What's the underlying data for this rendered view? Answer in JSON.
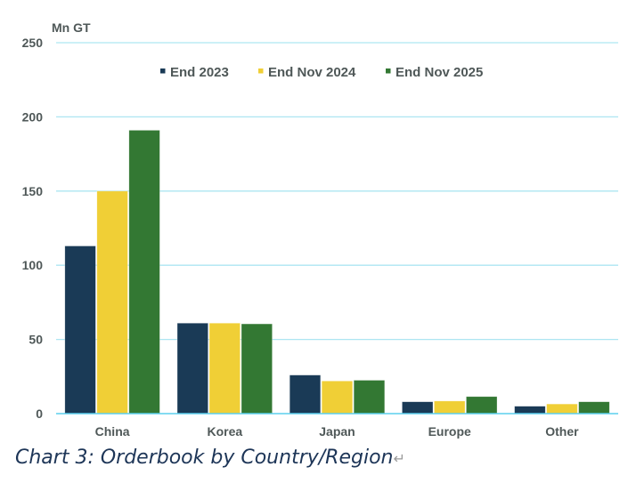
{
  "chart_data": {
    "type": "bar",
    "title": "",
    "unit_label": "Mn GT",
    "xlabel": "",
    "ylabel": "Mn GT",
    "ylim": [
      0,
      250
    ],
    "yticks": [
      0,
      50,
      100,
      150,
      200,
      250
    ],
    "grid": true,
    "legend_position": "top-center",
    "categories": [
      "China",
      "Korea",
      "Japan",
      "Europe",
      "Other"
    ],
    "series": [
      {
        "name": "End 2023",
        "color": "#1a3a56",
        "values": [
          113,
          61,
          26,
          8,
          5
        ]
      },
      {
        "name": "End Nov 2024",
        "color": "#f0cf36",
        "values": [
          150,
          61,
          22,
          8.5,
          6.5
        ]
      },
      {
        "name": "End Nov 2025",
        "color": "#337833",
        "values": [
          191,
          60.5,
          22.5,
          11.5,
          8
        ]
      }
    ],
    "colors": {
      "grid": "#ade6f2",
      "baseline": "#5ccfee",
      "text": "#4f5858"
    }
  },
  "caption": {
    "text": "Chart 3: Orderbook by Country/Region",
    "return_mark": "↵"
  }
}
